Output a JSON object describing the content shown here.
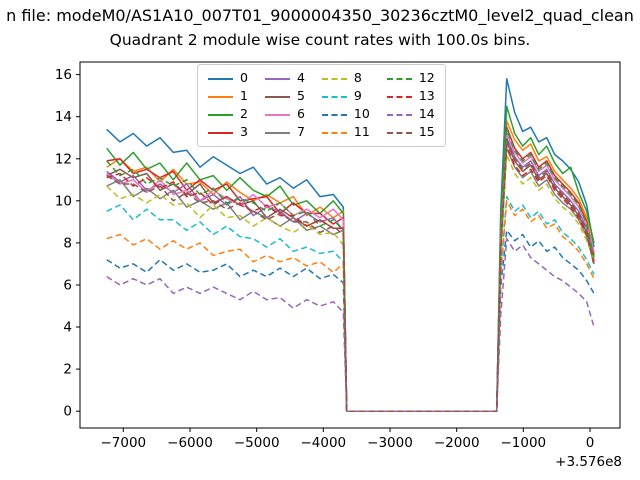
{
  "titles": {
    "file_line": "n file: modeM0/AS1A10_007T01_9000004350_30236cztM0_level2_quad_clean"
  },
  "chart_data": {
    "type": "line",
    "title": "Quadrant 2 module wise count rates with 100.0s bins.",
    "xlabel": "",
    "ylabel": "",
    "x_offset_label": "+3.576e8",
    "grid": false,
    "legend_position": "upper center",
    "xlim": [
      -7650,
      450
    ],
    "ylim": [
      -0.8,
      16.6
    ],
    "xticks": {
      "values": [
        -7000,
        -6000,
        -5000,
        -4000,
        -3000,
        -2000,
        -1000,
        0
      ],
      "labels": [
        "−7000",
        "−6000",
        "−5000",
        "−4000",
        "−3000",
        "−2000",
        "−1000",
        "0"
      ]
    },
    "yticks": {
      "values": [
        0,
        2,
        4,
        6,
        8,
        10,
        12,
        14,
        16
      ],
      "labels": [
        "0",
        "2",
        "4",
        "6",
        "8",
        "10",
        "12",
        "14",
        "16"
      ]
    },
    "x": [
      -7250,
      -7050,
      -6850,
      -6650,
      -6450,
      -6250,
      -6050,
      -5850,
      -5650,
      -5450,
      -5250,
      -5050,
      -4850,
      -4650,
      -4450,
      -4250,
      -4050,
      -3850,
      -3700,
      -3650,
      -3300,
      -2800,
      -2300,
      -1800,
      -1400,
      -1340,
      -1250,
      -1130,
      -1010,
      -890,
      -770,
      -650,
      -530,
      -410,
      -290,
      -170,
      -50,
      60
    ],
    "series": [
      {
        "name": "0",
        "color": "#1f77b4",
        "dash": false,
        "values": [
          13.4,
          12.8,
          13.2,
          12.6,
          13.0,
          12.3,
          12.4,
          11.6,
          12.1,
          11.7,
          11.3,
          11.6,
          10.8,
          11.1,
          10.6,
          11.0,
          10.2,
          10.3,
          9.7,
          0,
          0,
          0,
          0,
          0,
          0,
          9.5,
          15.8,
          14.2,
          13.3,
          13.5,
          12.8,
          13.0,
          12.2,
          11.9,
          11.5,
          10.9,
          9.8,
          7.8
        ]
      },
      {
        "name": "1",
        "color": "#ff7f0e",
        "dash": false,
        "values": [
          11.6,
          12.0,
          11.4,
          11.6,
          10.9,
          11.5,
          10.8,
          10.9,
          10.3,
          10.9,
          10.4,
          10.0,
          10.3,
          9.9,
          10.2,
          9.3,
          9.7,
          9.2,
          9.5,
          0,
          0,
          0,
          0,
          0,
          0,
          8.6,
          13.8,
          12.9,
          12.4,
          12.7,
          11.9,
          12.1,
          11.4,
          11.0,
          10.6,
          10.1,
          9.2,
          7.5
        ]
      },
      {
        "name": "2",
        "color": "#2ca02c",
        "dash": false,
        "values": [
          12.5,
          11.7,
          12.3,
          11.5,
          11.8,
          11.0,
          11.8,
          11.0,
          11.2,
          10.5,
          11.1,
          10.5,
          10.2,
          10.7,
          9.8,
          10.0,
          9.4,
          10.0,
          9.4,
          0,
          0,
          0,
          0,
          0,
          0,
          9.0,
          14.5,
          13.2,
          12.6,
          13.0,
          12.2,
          12.6,
          11.8,
          11.3,
          11.6,
          10.4,
          9.5,
          8.0
        ]
      },
      {
        "name": "3",
        "color": "#d62728",
        "dash": false,
        "values": [
          11.9,
          12.0,
          11.3,
          11.5,
          11.1,
          11.4,
          10.5,
          11.0,
          10.5,
          10.8,
          10.0,
          10.1,
          10.2,
          9.4,
          9.9,
          9.4,
          9.4,
          8.9,
          9.2,
          0,
          0,
          0,
          0,
          0,
          0,
          8.3,
          13.5,
          12.5,
          12.0,
          12.3,
          11.6,
          11.9,
          11.2,
          10.8,
          10.4,
          9.9,
          9.0,
          7.4
        ]
      },
      {
        "name": "4",
        "color": "#9467bd",
        "dash": false,
        "values": [
          11.4,
          10.9,
          11.2,
          10.5,
          10.8,
          10.4,
          10.8,
          10.0,
          10.3,
          9.8,
          10.2,
          9.3,
          9.7,
          9.5,
          9.0,
          9.4,
          9.0,
          9.2,
          8.6,
          0,
          0,
          0,
          0,
          0,
          0,
          7.9,
          13.0,
          12.1,
          11.6,
          11.9,
          11.2,
          11.5,
          10.8,
          10.4,
          10.0,
          9.5,
          8.7,
          7.2
        ]
      },
      {
        "name": "5",
        "color": "#8c564b",
        "dash": false,
        "values": [
          11.2,
          11.5,
          11.1,
          11.3,
          10.5,
          10.8,
          10.3,
          10.8,
          9.9,
          10.2,
          9.8,
          10.0,
          9.2,
          9.6,
          9.2,
          8.8,
          9.1,
          8.7,
          8.7,
          0,
          0,
          0,
          0,
          0,
          0,
          7.7,
          12.8,
          11.9,
          11.4,
          11.7,
          11.0,
          11.3,
          10.6,
          10.2,
          9.8,
          9.3,
          8.5,
          7.0
        ]
      },
      {
        "name": "6",
        "color": "#e377c2",
        "dash": false,
        "values": [
          11.3,
          10.8,
          11.0,
          10.4,
          11.0,
          10.3,
          10.5,
          10.0,
          10.5,
          10.1,
          9.8,
          10.3,
          9.7,
          9.9,
          9.3,
          9.6,
          9.2,
          9.6,
          9.1,
          0,
          0,
          0,
          0,
          0,
          0,
          8.2,
          13.2,
          12.3,
          11.8,
          12.1,
          11.4,
          11.7,
          11.0,
          10.6,
          10.2,
          9.7,
          8.9,
          7.6
        ]
      },
      {
        "name": "7",
        "color": "#7f7f7f",
        "dash": false,
        "values": [
          10.7,
          11.0,
          10.2,
          10.6,
          10.1,
          10.5,
          9.7,
          10.0,
          9.6,
          9.9,
          9.1,
          9.5,
          9.2,
          8.8,
          9.2,
          8.6,
          8.8,
          8.4,
          8.6,
          0,
          0,
          0,
          0,
          0,
          0,
          7.5,
          12.5,
          11.6,
          11.1,
          11.4,
          10.7,
          11.0,
          10.3,
          9.9,
          9.6,
          9.1,
          8.3,
          7.0
        ]
      },
      {
        "name": "8",
        "color": "#bcbd22",
        "dash": true,
        "values": [
          10.7,
          10.1,
          10.3,
          9.9,
          10.3,
          9.8,
          9.9,
          9.2,
          9.8,
          9.2,
          9.3,
          8.8,
          9.2,
          8.8,
          8.5,
          8.9,
          8.4,
          8.5,
          7.9,
          0,
          0,
          0,
          0,
          0,
          0,
          7.3,
          12.2,
          11.3,
          10.8,
          11.1,
          10.5,
          10.8,
          10.1,
          9.7,
          9.4,
          8.9,
          8.1,
          7.2
        ]
      },
      {
        "name": "9",
        "color": "#17becf",
        "dash": true,
        "values": [
          9.5,
          9.8,
          9.1,
          9.6,
          9.1,
          9.1,
          8.6,
          9.0,
          8.4,
          8.8,
          8.3,
          8.2,
          7.8,
          8.2,
          7.6,
          7.8,
          7.5,
          7.6,
          7.1,
          0,
          0,
          0,
          0,
          0,
          0,
          6.6,
          10.2,
          9.5,
          9.8,
          9.2,
          9.5,
          8.9,
          9.1,
          8.5,
          8.2,
          7.8,
          7.2,
          6.5
        ]
      },
      {
        "name": "10",
        "color": "#1f77b4",
        "dash": true,
        "values": [
          7.2,
          6.8,
          7.0,
          6.6,
          7.2,
          6.7,
          7.0,
          6.6,
          6.7,
          7.0,
          6.4,
          6.7,
          6.4,
          6.8,
          6.4,
          6.8,
          6.3,
          6.5,
          6.1,
          0,
          0,
          0,
          0,
          0,
          0,
          5.9,
          8.6,
          8.1,
          8.4,
          7.8,
          8.1,
          7.6,
          7.8,
          7.3,
          7.0,
          6.7,
          6.2,
          5.6
        ]
      },
      {
        "name": "11",
        "color": "#ff7f0e",
        "dash": true,
        "values": [
          8.2,
          8.4,
          7.9,
          8.2,
          7.7,
          8.1,
          7.7,
          8.0,
          7.4,
          7.6,
          7.7,
          7.1,
          7.4,
          7.1,
          7.3,
          6.9,
          7.1,
          6.6,
          7.0,
          0,
          0,
          0,
          0,
          0,
          0,
          6.4,
          10.0,
          9.3,
          9.6,
          9.0,
          9.3,
          8.7,
          8.9,
          8.3,
          8.0,
          7.6,
          7.0,
          6.3
        ]
      },
      {
        "name": "12",
        "color": "#2ca02c",
        "dash": true,
        "values": [
          11.9,
          11.2,
          11.5,
          10.8,
          11.1,
          10.7,
          11.0,
          10.3,
          10.6,
          9.9,
          10.1,
          9.9,
          9.5,
          9.9,
          9.3,
          9.5,
          8.8,
          9.1,
          8.6,
          0,
          0,
          0,
          0,
          0,
          0,
          8.0,
          13.4,
          12.4,
          11.9,
          12.2,
          11.5,
          11.8,
          11.1,
          10.7,
          10.3,
          9.8,
          8.9,
          7.3
        ]
      },
      {
        "name": "13",
        "color": "#d62728",
        "dash": true,
        "values": [
          11.1,
          11.3,
          10.7,
          11.1,
          10.6,
          10.9,
          10.2,
          10.4,
          9.8,
          10.2,
          9.8,
          9.5,
          9.8,
          9.3,
          9.3,
          8.8,
          9.1,
          8.7,
          8.7,
          0,
          0,
          0,
          0,
          0,
          0,
          7.7,
          12.6,
          11.7,
          11.2,
          11.5,
          10.9,
          11.2,
          10.5,
          10.1,
          9.7,
          9.2,
          8.4,
          7.1
        ]
      },
      {
        "name": "14",
        "color": "#9467bd",
        "dash": true,
        "values": [
          6.4,
          6.0,
          6.3,
          6.0,
          6.3,
          5.6,
          5.9,
          5.6,
          5.9,
          5.6,
          5.3,
          5.7,
          5.3,
          5.4,
          4.9,
          5.3,
          5.0,
          5.2,
          4.7,
          0,
          0,
          0,
          0,
          0,
          0,
          4.5,
          8.2,
          7.6,
          7.9,
          7.3,
          7.0,
          6.7,
          6.4,
          6.2,
          5.9,
          5.6,
          5.2,
          4.0
        ]
      },
      {
        "name": "15",
        "color": "#8c564b",
        "dash": true,
        "values": [
          11.2,
          10.8,
          10.8,
          10.4,
          10.7,
          10.0,
          10.4,
          9.9,
          10.0,
          9.6,
          9.9,
          9.5,
          9.1,
          9.4,
          9.0,
          9.0,
          8.5,
          8.8,
          8.4,
          0,
          0,
          0,
          0,
          0,
          0,
          7.6,
          12.9,
          12.0,
          11.5,
          11.8,
          11.1,
          11.4,
          10.7,
          10.3,
          9.9,
          9.4,
          8.6,
          6.9
        ]
      }
    ]
  }
}
